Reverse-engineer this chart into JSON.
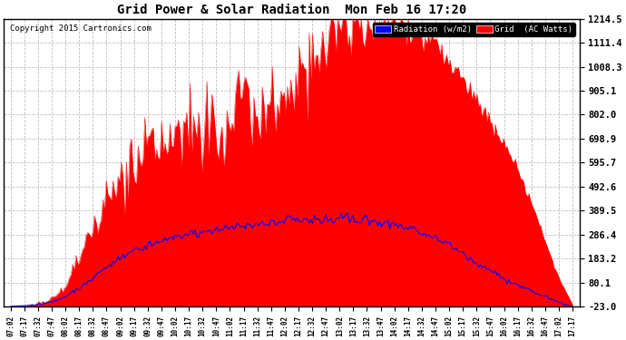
{
  "title": "Grid Power & Solar Radiation  Mon Feb 16 17:20",
  "copyright": "Copyright 2015 Cartronics.com",
  "background_color": "#ffffff",
  "plot_bg_color": "#ffffff",
  "grid_color": "#c0c0c0",
  "yticks": [
    -23.0,
    80.1,
    183.2,
    286.4,
    389.5,
    492.6,
    595.7,
    698.9,
    802.0,
    905.1,
    1008.3,
    1111.4,
    1214.5
  ],
  "ymin": -23.0,
  "ymax": 1214.5,
  "radiation_color": "#ff0000",
  "grid_power_color": "#0000ff",
  "legend_radiation_label": "Radiation (w/m2)",
  "legend_grid_label": "Grid  (AC Watts)",
  "x_labels": [
    "07:02",
    "07:17",
    "07:32",
    "07:47",
    "08:02",
    "08:17",
    "08:32",
    "08:47",
    "09:02",
    "09:17",
    "09:32",
    "09:47",
    "10:02",
    "10:17",
    "10:32",
    "10:47",
    "11:02",
    "11:17",
    "11:32",
    "11:47",
    "12:02",
    "12:17",
    "12:32",
    "12:47",
    "13:02",
    "13:17",
    "13:32",
    "13:47",
    "14:02",
    "14:17",
    "14:32",
    "14:47",
    "15:02",
    "15:17",
    "15:32",
    "15:47",
    "16:02",
    "16:17",
    "16:32",
    "16:47",
    "17:02",
    "17:17"
  ],
  "n_points": 42,
  "rad_envelope": [
    -23,
    -23,
    -10,
    10,
    60,
    180,
    300,
    420,
    520,
    590,
    650,
    680,
    710,
    730,
    750,
    770,
    800,
    810,
    800,
    820,
    870,
    950,
    1050,
    1130,
    1180,
    1200,
    1195,
    1214,
    1210,
    1195,
    1160,
    1090,
    1020,
    950,
    870,
    780,
    680,
    560,
    420,
    260,
    100,
    -15
  ],
  "rad_noise_scale": [
    0,
    0,
    2,
    5,
    15,
    20,
    25,
    30,
    40,
    45,
    50,
    55,
    55,
    55,
    55,
    60,
    60,
    60,
    55,
    55,
    60,
    65,
    70,
    70,
    60,
    55,
    50,
    45,
    40,
    35,
    30,
    25,
    20,
    18,
    15,
    12,
    10,
    8,
    5,
    3,
    2,
    0
  ],
  "gp_envelope": [
    -23,
    -20,
    -15,
    -5,
    20,
    55,
    100,
    145,
    185,
    215,
    240,
    260,
    275,
    285,
    295,
    305,
    315,
    325,
    330,
    340,
    345,
    348,
    350,
    355,
    360,
    355,
    350,
    340,
    330,
    315,
    295,
    270,
    240,
    200,
    165,
    130,
    95,
    70,
    45,
    20,
    -5,
    -23
  ],
  "gp_noise_scale": [
    0,
    0,
    2,
    3,
    5,
    5,
    5,
    5,
    8,
    8,
    8,
    8,
    8,
    8,
    8,
    8,
    10,
    10,
    10,
    12,
    12,
    12,
    12,
    12,
    12,
    12,
    12,
    10,
    10,
    10,
    10,
    8,
    8,
    8,
    8,
    8,
    6,
    5,
    4,
    3,
    2,
    0
  ]
}
